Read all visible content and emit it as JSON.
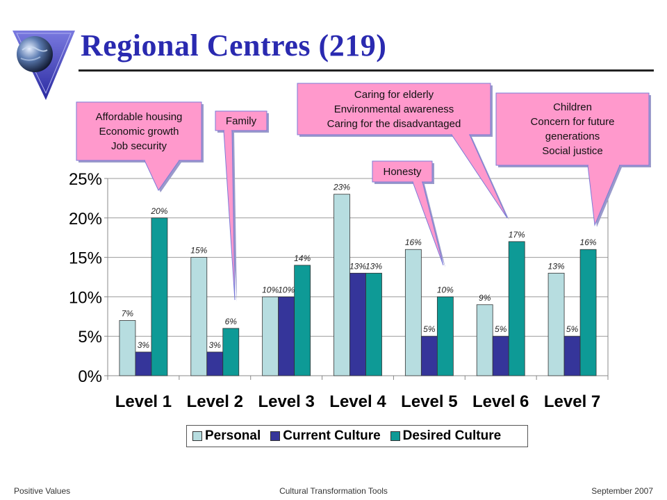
{
  "slide": {
    "title": "Regional Centres (219)"
  },
  "footer": {
    "left": "Positive Values",
    "center": "Cultural Transformation Tools",
    "right": "September 2007"
  },
  "colors": {
    "personal": "#b7dde0",
    "current": "#35359a",
    "desired": "#0e9a96",
    "callout": "#ff99cc"
  },
  "callouts": [
    {
      "lines": [
        "Affordable housing",
        "Economic growth",
        "Job security"
      ]
    },
    {
      "lines": [
        "Family"
      ]
    },
    {
      "lines": [
        "Caring for elderly",
        "Environmental awareness",
        "Caring for the disadvantaged"
      ]
    },
    {
      "lines": [
        "Honesty"
      ]
    },
    {
      "lines": [
        "Children",
        "Concern for future",
        "generations",
        "Social justice"
      ]
    }
  ],
  "chart_data": {
    "type": "bar",
    "categories": [
      "Level 1",
      "Level 2",
      "Level 3",
      "Level 4",
      "Level 5",
      "Level 6",
      "Level 7"
    ],
    "series": [
      {
        "name": "Personal",
        "values": [
          7,
          15,
          10,
          23,
          16,
          9,
          13
        ],
        "labels": [
          "7%",
          "15%",
          "10%",
          "23%",
          "16%",
          "9%",
          "13%"
        ]
      },
      {
        "name": "Current Culture",
        "values": [
          3,
          3,
          10,
          13,
          5,
          5,
          5
        ],
        "labels": [
          "3%",
          "3%",
          "10%",
          "13%",
          "5%",
          "5%",
          "5%"
        ]
      },
      {
        "name": "Desired Culture",
        "values": [
          20,
          6,
          14,
          13,
          10,
          17,
          16
        ],
        "labels": [
          "20%",
          "6%",
          "14%",
          "13%",
          "10%",
          "17%",
          "16%"
        ]
      }
    ],
    "yticks": [
      "0%",
      "5%",
      "10%",
      "15%",
      "20%",
      "25%"
    ],
    "ylim": [
      0,
      25
    ],
    "grid": true,
    "legend": "bottom"
  }
}
